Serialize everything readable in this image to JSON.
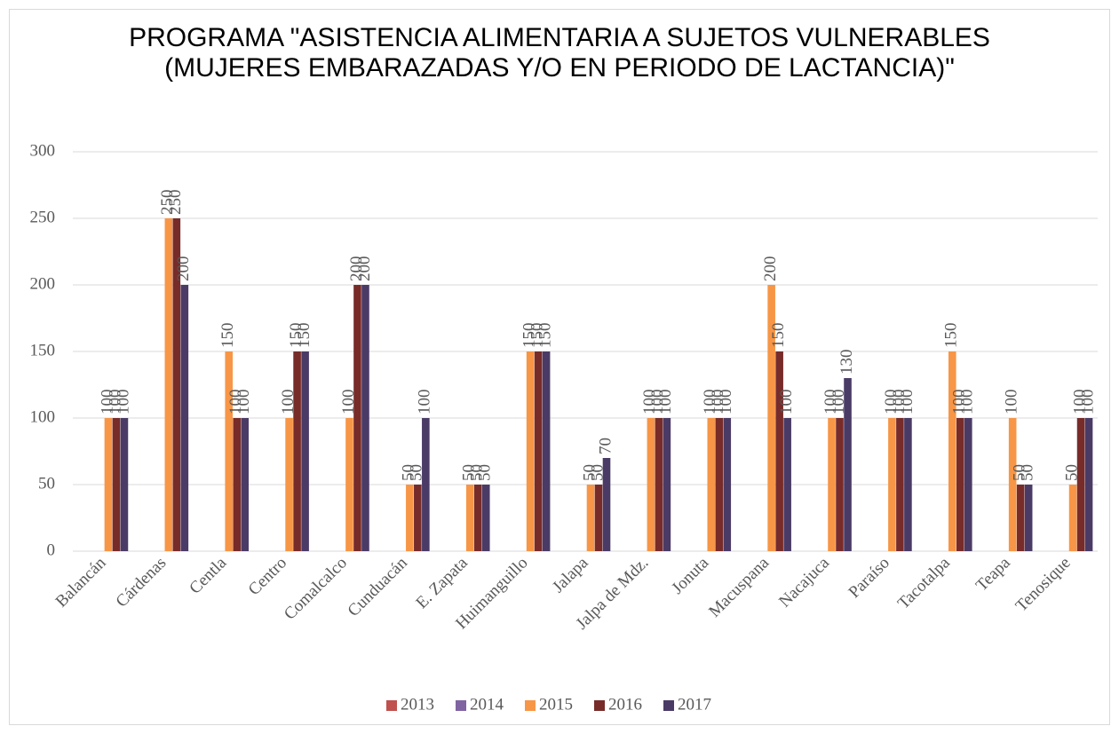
{
  "chart_data": {
    "type": "bar",
    "title": "PROGRAMA \"ASISTENCIA  ALIMENTARIA A SUJETOS VULNERABLES (MUJERES EMBARAZADAS Y/O EN PERIODO DE LACTANCIA)\"",
    "categories": [
      "Balancán",
      "Cárdenas",
      "Centla",
      "Centro",
      "Comalcalco",
      "Cunduacán",
      "E. Zapata",
      "Huimanguillo",
      "Jalapa",
      "Jalpa de Mdz.",
      "Jonuta",
      "Macuspana",
      "Nacajuca",
      "Paraíso",
      "Tacotalpa",
      "Teapa",
      "Tenosique"
    ],
    "series": [
      {
        "name": "2013",
        "color": "#c0504d",
        "values": [
          null,
          null,
          null,
          null,
          null,
          null,
          null,
          null,
          null,
          null,
          null,
          null,
          null,
          null,
          null,
          null,
          null
        ]
      },
      {
        "name": "2014",
        "color": "#8064a2",
        "values": [
          null,
          null,
          null,
          null,
          null,
          null,
          null,
          null,
          null,
          null,
          null,
          null,
          null,
          null,
          null,
          null,
          null
        ]
      },
      {
        "name": "2015",
        "color": "#f79646",
        "values": [
          100,
          250,
          150,
          100,
          100,
          50,
          50,
          150,
          50,
          100,
          100,
          200,
          100,
          100,
          150,
          100,
          50
        ]
      },
      {
        "name": "2016",
        "color": "#772c2a",
        "values": [
          100,
          250,
          100,
          150,
          200,
          50,
          50,
          150,
          50,
          100,
          100,
          150,
          100,
          100,
          100,
          50,
          100
        ]
      },
      {
        "name": "2017",
        "color": "#4a3b66",
        "values": [
          100,
          200,
          100,
          150,
          200,
          100,
          50,
          150,
          70,
          100,
          100,
          100,
          130,
          100,
          100,
          50,
          100
        ]
      }
    ],
    "ylim": [
      0,
      300
    ],
    "yticks": [
      0,
      50,
      100,
      150,
      200,
      250,
      300
    ],
    "grid": true,
    "legend": "bottom"
  }
}
